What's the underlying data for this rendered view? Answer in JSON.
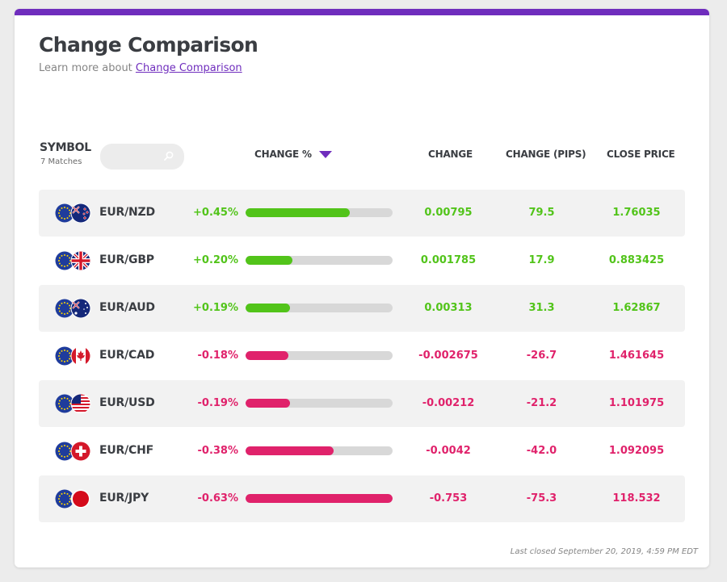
{
  "widget": {
    "title": "Change Comparison",
    "subtitle_prefix": "Learn more about ",
    "subtitle_link": "Change Comparison",
    "footer": "Last closed September 20, 2019, 4:59 PM EDT"
  },
  "table": {
    "symbol_label": "SYMBOL",
    "matches": "7 Matches",
    "search_placeholder": "",
    "headers": {
      "change_pct": "CHANGE %",
      "change": "CHANGE",
      "change_pips": "CHANGE (PIPS)",
      "close_price": "CLOSE PRICE"
    },
    "rows": [
      {
        "pair": "EUR/NZD",
        "pct": "+0.45%",
        "bar_fraction": 0.71,
        "change": "0.00795",
        "pips": "79.5",
        "close": "1.76035",
        "dir": "pos",
        "quote_flag": "nz-flag-icon"
      },
      {
        "pair": "EUR/GBP",
        "pct": "+0.20%",
        "bar_fraction": 0.32,
        "change": "0.001785",
        "pips": "17.9",
        "close": "0.883425",
        "dir": "pos",
        "quote_flag": "gb-flag-icon"
      },
      {
        "pair": "EUR/AUD",
        "pct": "+0.19%",
        "bar_fraction": 0.3,
        "change": "0.00313",
        "pips": "31.3",
        "close": "1.62867",
        "dir": "pos",
        "quote_flag": "au-flag-icon"
      },
      {
        "pair": "EUR/CAD",
        "pct": "-0.18%",
        "bar_fraction": 0.29,
        "change": "-0.002675",
        "pips": "-26.7",
        "close": "1.461645",
        "dir": "neg",
        "quote_flag": "ca-flag-icon"
      },
      {
        "pair": "EUR/USD",
        "pct": "-0.19%",
        "bar_fraction": 0.3,
        "change": "-0.00212",
        "pips": "-21.2",
        "close": "1.101975",
        "dir": "neg",
        "quote_flag": "us-flag-icon"
      },
      {
        "pair": "EUR/CHF",
        "pct": "-0.38%",
        "bar_fraction": 0.6,
        "change": "-0.0042",
        "pips": "-42.0",
        "close": "1.092095",
        "dir": "neg",
        "quote_flag": "ch-flag-icon"
      },
      {
        "pair": "EUR/JPY",
        "pct": "-0.63%",
        "bar_fraction": 1.0,
        "change": "-0.753",
        "pips": "-75.3",
        "close": "118.532",
        "dir": "neg",
        "quote_flag": "jp-flag-icon"
      }
    ]
  },
  "colors": {
    "accent": "#6f2dbd",
    "positive": "#52c41a",
    "negative": "#e0226b"
  }
}
